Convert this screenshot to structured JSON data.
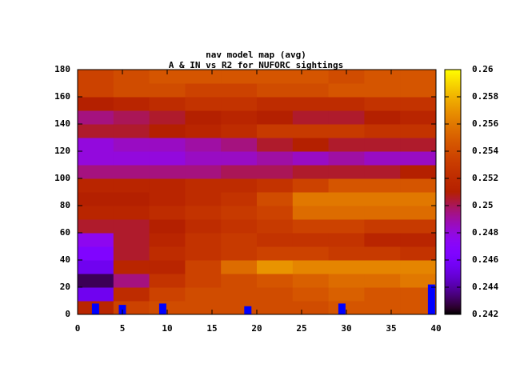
{
  "chart_data": {
    "type": "heatmap",
    "title": "nav model map (avg)",
    "subtitle": "A & IN vs R2 for NUFORC sightings",
    "xbins": [
      0,
      4,
      8,
      12,
      16,
      20,
      24,
      28,
      32,
      36,
      40
    ],
    "ybins": [
      0,
      10,
      20,
      30,
      40,
      50,
      60,
      70,
      80,
      90,
      100,
      110,
      120,
      130,
      140,
      150,
      160,
      170,
      180
    ],
    "z": [
      [
        0.2515,
        0.2535,
        0.254,
        0.254,
        0.254,
        0.254,
        0.254,
        0.2545,
        0.2545,
        0.2545
      ],
      [
        0.2455,
        0.252,
        0.2535,
        0.254,
        0.254,
        0.254,
        0.2545,
        0.255,
        0.2545,
        0.2545
      ],
      [
        0.243,
        0.2495,
        0.2525,
        0.2535,
        0.254,
        0.2545,
        0.255,
        0.2555,
        0.2555,
        0.256
      ],
      [
        0.2455,
        0.2515,
        0.2515,
        0.2535,
        0.2555,
        0.257,
        0.2565,
        0.2565,
        0.2565,
        0.2565
      ],
      [
        0.2465,
        0.2505,
        0.252,
        0.2525,
        0.253,
        0.2535,
        0.2535,
        0.253,
        0.253,
        0.2525
      ],
      [
        0.2475,
        0.2505,
        0.2515,
        0.2525,
        0.253,
        0.2525,
        0.2525,
        0.2525,
        0.2515,
        0.2515
      ],
      [
        0.2505,
        0.2505,
        0.251,
        0.252,
        0.2525,
        0.253,
        0.2535,
        0.2535,
        0.253,
        0.253
      ],
      [
        0.2515,
        0.2515,
        0.252,
        0.2525,
        0.253,
        0.2535,
        0.2555,
        0.2555,
        0.2555,
        0.2555
      ],
      [
        0.251,
        0.251,
        0.2515,
        0.252,
        0.2525,
        0.254,
        0.256,
        0.256,
        0.256,
        0.256
      ],
      [
        0.2515,
        0.2515,
        0.2515,
        0.252,
        0.252,
        0.2525,
        0.2535,
        0.2545,
        0.2545,
        0.2545
      ],
      [
        0.2495,
        0.2495,
        0.2495,
        0.2495,
        0.25,
        0.25,
        0.2505,
        0.2505,
        0.2505,
        0.251
      ],
      [
        0.248,
        0.248,
        0.248,
        0.2485,
        0.2485,
        0.249,
        0.2485,
        0.249,
        0.2485,
        0.2485
      ],
      [
        0.248,
        0.2485,
        0.2485,
        0.249,
        0.2495,
        0.2505,
        0.251,
        0.2505,
        0.2505,
        0.2505
      ],
      [
        0.2505,
        0.2505,
        0.251,
        0.2515,
        0.252,
        0.253,
        0.253,
        0.253,
        0.2525,
        0.2525
      ],
      [
        0.2495,
        0.25,
        0.2505,
        0.251,
        0.2515,
        0.251,
        0.2505,
        0.2505,
        0.251,
        0.2515
      ],
      [
        0.251,
        0.2515,
        0.252,
        0.2525,
        0.2525,
        0.252,
        0.252,
        0.252,
        0.2525,
        0.2525
      ],
      [
        0.2535,
        0.254,
        0.254,
        0.2535,
        0.2535,
        0.254,
        0.254,
        0.2545,
        0.2545,
        0.2545
      ],
      [
        0.2535,
        0.254,
        0.2545,
        0.2545,
        0.2545,
        0.2545,
        0.2545,
        0.254,
        0.2545,
        0.2545
      ]
    ],
    "bars": {
      "x": [
        2,
        5,
        9.5,
        19,
        29.5,
        39.5
      ],
      "values": [
        8,
        7,
        8,
        6,
        8,
        22
      ],
      "color": "#0000ff"
    },
    "xlim": [
      0,
      40
    ],
    "xticks": [
      0,
      5,
      10,
      15,
      20,
      25,
      30,
      35,
      40
    ],
    "ylim": [
      0,
      180
    ],
    "yticks": [
      0,
      20,
      40,
      60,
      80,
      100,
      120,
      140,
      160,
      180
    ],
    "zlim": [
      0.242,
      0.26
    ],
    "zticks": [
      0.242,
      0.244,
      0.246,
      0.248,
      0.25,
      0.252,
      0.254,
      0.256,
      0.258,
      0.26
    ]
  }
}
